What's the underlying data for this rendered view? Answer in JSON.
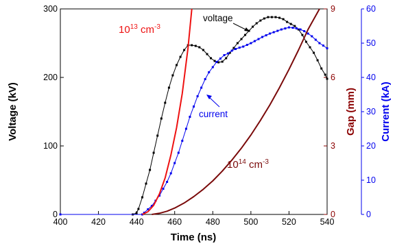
{
  "chart_data": {
    "type": "line",
    "xlabel": "Time (ns)",
    "xlim": [
      400,
      540
    ],
    "x_ticks": [
      "400",
      "420",
      "440",
      "460",
      "480",
      "500",
      "520",
      "540"
    ],
    "axes": {
      "voltage": {
        "label": "Voltage (kV)",
        "lim": [
          0,
          300
        ],
        "ticks": [
          "0",
          "100",
          "200",
          "300"
        ],
        "color": "#000000"
      },
      "gap": {
        "label": "Gap (mm)",
        "lim": [
          0,
          9
        ],
        "ticks": [
          "0",
          "3",
          "6",
          "9"
        ],
        "color": "#8b0000"
      },
      "current": {
        "label": "Current (kA)",
        "lim": [
          0,
          60
        ],
        "ticks": [
          "0",
          "10",
          "20",
          "30",
          "40",
          "50",
          "60"
        ],
        "color": "#0000ee"
      }
    },
    "series": [
      {
        "name": "voltage",
        "axis": "voltage",
        "color": "#000000",
        "style": "dotted-line",
        "x": [
          400,
          438,
          440,
          441,
          443,
          445,
          447,
          449,
          451,
          453,
          455,
          457,
          459,
          461,
          463,
          465,
          467,
          469,
          471,
          473,
          475,
          477,
          479,
          481,
          483,
          485,
          487,
          489,
          491,
          493,
          495,
          497,
          499,
          501,
          503,
          505,
          507,
          509,
          511,
          513,
          515,
          517,
          519,
          521,
          523,
          525,
          527,
          529,
          531,
          533,
          535,
          537,
          539,
          540
        ],
        "y": [
          0,
          0,
          2,
          8,
          25,
          45,
          65,
          90,
          115,
          140,
          163,
          185,
          203,
          218,
          230,
          240,
          247,
          247,
          246,
          244,
          240,
          234,
          228,
          224,
          222,
          223,
          228,
          236,
          243,
          250,
          256,
          262,
          268,
          274,
          279,
          283,
          286,
          288,
          288,
          288,
          287,
          285,
          281,
          278,
          275,
          270,
          262,
          252,
          244,
          236,
          225,
          213,
          204,
          198
        ]
      },
      {
        "name": "current",
        "axis": "current",
        "color": "#0000ee",
        "style": "dotted-line",
        "x": [
          400,
          443,
          444,
          446,
          448,
          450,
          452,
          454,
          456,
          458,
          460,
          462,
          464,
          466,
          468,
          470,
          472,
          474,
          476,
          478,
          480,
          482,
          484,
          486,
          488,
          490,
          492,
          494,
          496,
          498,
          500,
          502,
          504,
          506,
          508,
          510,
          512,
          514,
          516,
          518,
          520,
          522,
          524,
          526,
          528,
          530,
          532,
          534,
          536,
          538,
          540
        ],
        "y": [
          0,
          0,
          0.5,
          1.5,
          2.5,
          4,
          5.5,
          7.5,
          9.5,
          12,
          15,
          18,
          21.5,
          25,
          28.5,
          31.5,
          34.5,
          37,
          39.5,
          41.5,
          43,
          44.5,
          45.5,
          46.5,
          47,
          47.8,
          48.3,
          48.7,
          49,
          49.5,
          50,
          50.6,
          51.2,
          51.8,
          52.3,
          52.8,
          53.2,
          53.6,
          54,
          54.3,
          54.6,
          54.5,
          54.3,
          54,
          53.5,
          52.8,
          52,
          51,
          50,
          49.3,
          48.5
        ]
      },
      {
        "name": "10^13 cm^-3",
        "axis": "gap",
        "color": "#ee1111",
        "style": "solid",
        "x": [
          443,
          446,
          449,
          452,
          455,
          458,
          461,
          464,
          467,
          469
        ],
        "y": [
          0,
          0.12,
          0.4,
          0.9,
          1.6,
          2.6,
          3.8,
          5.3,
          7.3,
          9
        ]
      },
      {
        "name": "10^14 cm^-3",
        "axis": "gap",
        "color": "#7a0a0a",
        "style": "solid",
        "x": [
          448,
          452,
          456,
          460,
          465,
          470,
          475,
          480,
          485,
          490,
          495,
          500,
          505,
          510,
          515,
          520,
          525,
          530,
          536
        ],
        "y": [
          0,
          0.05,
          0.14,
          0.28,
          0.5,
          0.78,
          1.1,
          1.47,
          1.9,
          2.38,
          2.9,
          3.48,
          4.12,
          4.8,
          5.55,
          6.35,
          7.2,
          8.1,
          9
        ]
      }
    ],
    "annotations": {
      "voltage_label": "voltage",
      "current_label": "current",
      "density_13_base": "10",
      "density_13_exp": "13",
      "density_13_unit_base": " cm",
      "density_13_unit_exp": "-3",
      "density_14_base": "10",
      "density_14_exp": "14",
      "density_14_unit_base": " cm",
      "density_14_unit_exp": "-3"
    },
    "grid": false
  }
}
